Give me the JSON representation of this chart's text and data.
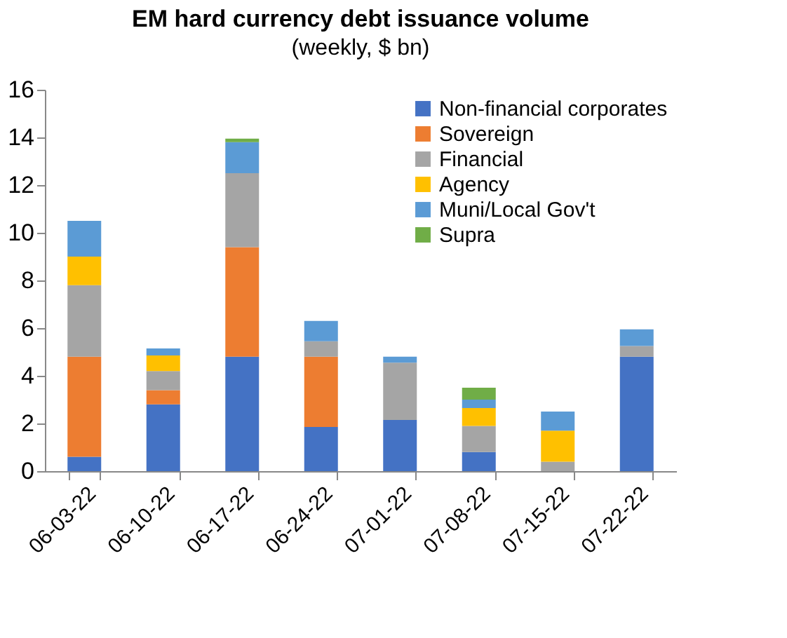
{
  "chart_data": {
    "type": "bar",
    "title": "EM hard currency debt issuance volume",
    "subtitle": "(weekly, $ bn)",
    "categories": [
      "06-03-22",
      "06-10-22",
      "06-17-22",
      "06-24-22",
      "07-01-22",
      "07-08-22",
      "07-15-22",
      "07-22-22"
    ],
    "stacked": true,
    "series": [
      {
        "name": "Non-financial corporates",
        "color": "#4472c4",
        "values": [
          0.6,
          2.8,
          4.8,
          1.85,
          2.15,
          0.8,
          0,
          4.8
        ]
      },
      {
        "name": "Sovereign",
        "color": "#ed7d31",
        "values": [
          4.2,
          0.6,
          4.6,
          2.95,
          0,
          0,
          0,
          0
        ]
      },
      {
        "name": "Financial",
        "color": "#a5a5a5",
        "values": [
          3.0,
          0.8,
          3.1,
          0.65,
          2.4,
          1.1,
          0.4,
          0.45
        ]
      },
      {
        "name": "Agency",
        "color": "#ffc000",
        "values": [
          1.2,
          0.65,
          0,
          0,
          0,
          0.75,
          1.3,
          0
        ]
      },
      {
        "name": "Muni/Local Gov't",
        "color": "#5b9bd5",
        "values": [
          1.5,
          0.3,
          1.3,
          0.85,
          0.25,
          0.35,
          0.8,
          0.7
        ]
      },
      {
        "name": "Supra",
        "color": "#70ad47",
        "values": [
          0,
          0,
          0.15,
          0,
          0,
          0.5,
          0,
          0
        ]
      }
    ],
    "ylim": [
      0,
      16
    ],
    "yticks": [
      0,
      2,
      4,
      6,
      8,
      10,
      12,
      14,
      16
    ],
    "grid": false,
    "legend": "top right"
  }
}
